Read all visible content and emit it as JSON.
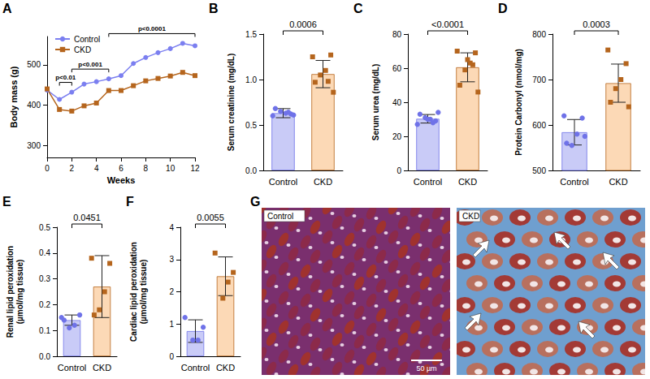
{
  "chart_data": [
    {
      "panel_label": "A",
      "type": "line",
      "x_label": "Weeks",
      "y_label": "Body mass (g)",
      "x": [
        0,
        1,
        2,
        3,
        4,
        5,
        6,
        7,
        8,
        9,
        10,
        11,
        12
      ],
      "xlim": [
        0,
        12
      ],
      "xticks": [
        0,
        2,
        4,
        6,
        8,
        10,
        12
      ],
      "ylim": [
        270,
        570
      ],
      "yticks": [
        300,
        400,
        500
      ],
      "series": [
        {
          "name": "Control",
          "color": "#7b7ff0",
          "marker": "circle",
          "values": [
            437,
            414,
            432,
            452,
            458,
            465,
            473,
            503,
            518,
            530,
            540,
            553,
            547
          ]
        },
        {
          "name": "CKD",
          "color": "#b5651d",
          "marker": "square",
          "values": [
            440,
            389,
            385,
            398,
            405,
            436,
            436,
            448,
            460,
            466,
            472,
            481,
            473
          ]
        }
      ],
      "annotations": [
        {
          "text": "p<0.01",
          "from": 1,
          "to": 2
        },
        {
          "text": "p<0.001",
          "from": 2,
          "to": 5
        },
        {
          "text": "p<0.0001",
          "from": 5,
          "to": 12
        }
      ],
      "legend": "upper left",
      "grid": false
    },
    {
      "panel_label": "B",
      "type": "bar",
      "y_label": "Serum creatinine (mg/dL)",
      "categories": [
        "Control",
        "CKD"
      ],
      "values": [
        0.63,
        1.06
      ],
      "errors": [
        0.05,
        0.15
      ],
      "points": [
        [
          0.6,
          0.62,
          0.63,
          0.65,
          0.68,
          0.61,
          0.64
        ],
        [
          1.25,
          1.27,
          1.1,
          1.05,
          0.97,
          0.86,
          0.98
        ]
      ],
      "colors": [
        "#c9cbf7",
        "#fcd9b6"
      ],
      "ylim": [
        0,
        1.5
      ],
      "yticks": [
        {
          "value": 0,
          "label": "0.0"
        },
        {
          "value": 0.5,
          "label": "0.5"
        },
        {
          "value": 1,
          "label": "1.0"
        },
        {
          "value": 1.5,
          "label": "1.5"
        }
      ],
      "annotations": [
        {
          "text": "0.0006",
          "from": "Control",
          "to": "CKD"
        }
      ],
      "grid": false
    },
    {
      "panel_label": "C",
      "type": "bar",
      "y_label": "Serum urea (mg/dL)",
      "categories": [
        "Control",
        "CKD"
      ],
      "values": [
        30.3,
        60.5
      ],
      "errors": [
        2.5,
        8.5
      ],
      "points": [
        [
          27,
          29,
          30,
          31,
          33,
          34,
          28,
          30
        ],
        [
          70,
          69,
          63,
          59,
          50,
          46,
          62,
          65
        ]
      ],
      "colors": [
        "#c9cbf7",
        "#fcd9b6"
      ],
      "ylim": [
        0,
        80
      ],
      "yticks": [
        0,
        20,
        40,
        60,
        80
      ],
      "annotations": [
        {
          "text": "<0.0001",
          "from": "Control",
          "to": "CKD"
        }
      ],
      "grid": false
    },
    {
      "panel_label": "D",
      "type": "bar",
      "y_label": "Protein Carbonyl (nmol/mg)",
      "categories": [
        "Control",
        "CKD"
      ],
      "values": [
        584,
        692
      ],
      "errors": [
        28,
        42
      ],
      "points": [
        [
          620,
          615,
          580,
          555,
          560,
          575
        ],
        [
          765,
          735,
          700,
          680,
          650,
          640
        ]
      ],
      "colors": [
        "#c9cbf7",
        "#fcd9b6"
      ],
      "ylim": [
        500,
        800
      ],
      "yticks": [
        500,
        600,
        700,
        800
      ],
      "annotations": [
        {
          "text": "0.0003",
          "from": "Control",
          "to": "CKD"
        }
      ],
      "grid": false
    },
    {
      "panel_label": "E",
      "type": "bar",
      "y_label": "Renal lipid peroxidation (µmol/mg tissue)",
      "categories": [
        "Control",
        "CKD"
      ],
      "values": [
        0.14,
        0.27
      ],
      "errors": [
        0.02,
        0.12
      ],
      "points": [
        [
          0.15,
          0.16,
          0.12,
          0.11,
          0.14
        ],
        [
          0.38,
          0.36,
          0.25,
          0.18,
          0.16
        ]
      ],
      "colors": [
        "#c9cbf7",
        "#fcd9b6"
      ],
      "ylim": [
        0,
        0.5
      ],
      "yticks": [
        {
          "value": 0,
          "label": "0.0"
        },
        0.1,
        0.2,
        0.3,
        0.4,
        0.5
      ],
      "annotations": [
        {
          "text": "0.0451",
          "from": "Control",
          "to": "CKD"
        }
      ],
      "grid": false
    },
    {
      "panel_label": "F",
      "type": "bar",
      "y_label": "Cardiac lipid peroxidation (µmol/mg tissue)",
      "categories": [
        "Control",
        "CKD"
      ],
      "values": [
        0.78,
        2.48
      ],
      "errors": [
        0.35,
        0.6
      ],
      "points": [
        [
          1.2,
          0.9,
          0.5,
          0.5
        ],
        [
          3.2,
          2.6,
          2.3,
          1.8
        ]
      ],
      "colors": [
        "#c9cbf7",
        "#fcd9b6"
      ],
      "ylim": [
        0,
        4
      ],
      "yticks": [
        0,
        1,
        2,
        3,
        4
      ],
      "annotations": [
        {
          "text": "0.0055",
          "from": "Control",
          "to": "CKD"
        }
      ],
      "grid": false
    }
  ],
  "image_panel": {
    "panel_label": "G",
    "type": "image",
    "images": [
      {
        "label": "Control",
        "scale_bar": "50 µm"
      },
      {
        "label": "CKD"
      }
    ]
  }
}
